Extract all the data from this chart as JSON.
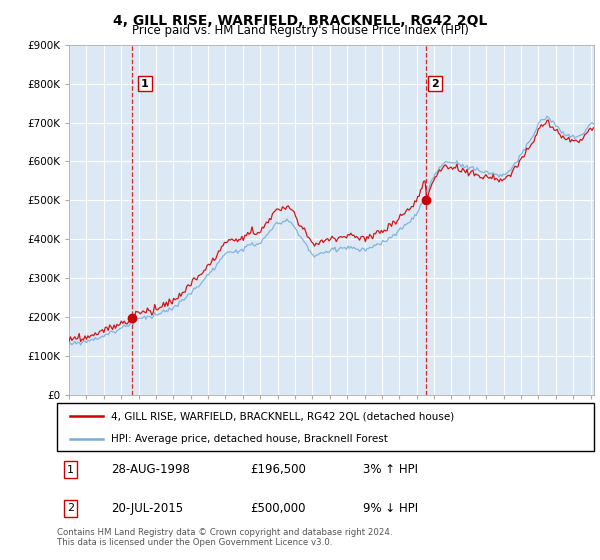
{
  "title": "4, GILL RISE, WARFIELD, BRACKNELL, RG42 2QL",
  "subtitle": "Price paid vs. HM Land Registry's House Price Index (HPI)",
  "ylabel_ticks": [
    "£0",
    "£100K",
    "£200K",
    "£300K",
    "£400K",
    "£500K",
    "£600K",
    "£700K",
    "£800K",
    "£900K"
  ],
  "ylim": [
    0,
    900000
  ],
  "ytick_values": [
    0,
    100000,
    200000,
    300000,
    400000,
    500000,
    600000,
    700000,
    800000,
    900000
  ],
  "xlim_start": 1995.0,
  "xlim_end": 2025.2,
  "sale1_year": 1998.65,
  "sale1_price": 196500,
  "sale2_year": 2015.53,
  "sale2_price": 500000,
  "legend_line1": "4, GILL RISE, WARFIELD, BRACKNELL, RG42 2QL (detached house)",
  "legend_line2": "HPI: Average price, detached house, Bracknell Forest",
  "table_row1": [
    "1",
    "28-AUG-1998",
    "£196,500",
    "3% ↑ HPI"
  ],
  "table_row2": [
    "2",
    "20-JUL-2015",
    "£500,000",
    "9% ↓ HPI"
  ],
  "footnote": "Contains HM Land Registry data © Crown copyright and database right 2024.\nThis data is licensed under the Open Government Licence v3.0.",
  "line_color_red": "#cc0000",
  "line_color_blue": "#7aaddc",
  "marker_color": "#cc0000",
  "dashed_color": "#cc0000",
  "bg_fill_color": "#dce9f5"
}
